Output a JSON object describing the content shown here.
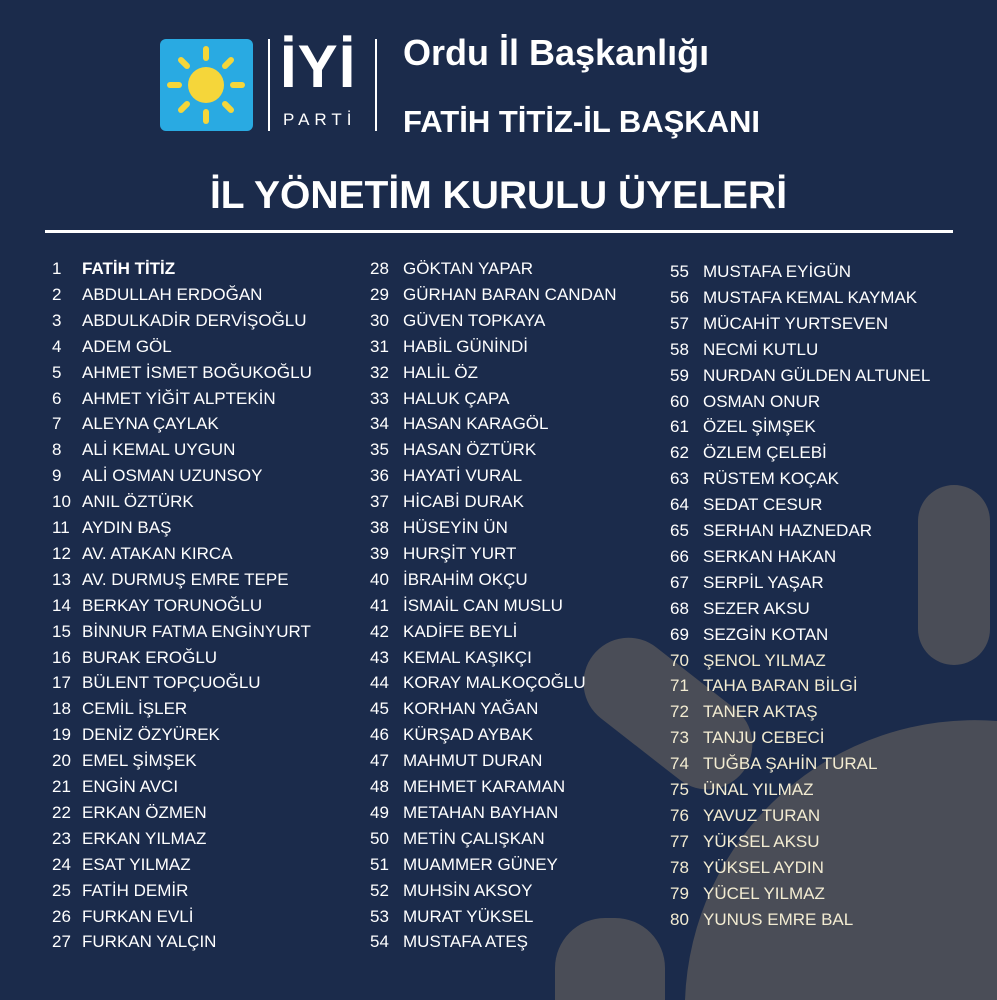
{
  "logo": {
    "wordmark": "İYİ",
    "subtext": "PARTİ",
    "sun_color": "#f5d63a",
    "box_color": "#29aae2"
  },
  "header": {
    "title": "Ordu İl Başkanlığı",
    "subtitle": "FATİH TİTİZ-İL BAŞKANI"
  },
  "section_title": "İL YÖNETİM KURULU ÜYELERİ",
  "members": [
    [
      "1",
      "FATİH TİTİZ"
    ],
    [
      "2",
      "ABDULLAH ERDOĞAN"
    ],
    [
      "3",
      "ABDULKADİR DERVİŞOĞLU"
    ],
    [
      "4",
      "ADEM GÖL"
    ],
    [
      "5",
      "AHMET İSMET BOĞUKOĞLU"
    ],
    [
      "6",
      "AHMET YİĞİT ALPTEKİN"
    ],
    [
      "7",
      "ALEYNA ÇAYLAK"
    ],
    [
      "8",
      "ALİ KEMAL UYGUN"
    ],
    [
      "9",
      "ALİ OSMAN UZUNSOY"
    ],
    [
      "10",
      "ANIL ÖZTÜRK"
    ],
    [
      "11",
      "AYDIN BAŞ"
    ],
    [
      "12",
      "AV. ATAKAN KIRCA"
    ],
    [
      "13",
      "AV. DURMUŞ EMRE TEPE"
    ],
    [
      "14",
      "BERKAY TORUNOĞLU"
    ],
    [
      "15",
      "BİNNUR FATMA ENGİNYURT"
    ],
    [
      "16",
      "BURAK EROĞLU"
    ],
    [
      "17",
      "BÜLENT TOPÇUOĞLU"
    ],
    [
      "18",
      "CEMİL İŞLER"
    ],
    [
      "19",
      "DENİZ ÖZYÜREK"
    ],
    [
      "20",
      "EMEL ŞİMŞEK"
    ],
    [
      "21",
      "ENGİN AVCI"
    ],
    [
      "22",
      "ERKAN ÖZMEN"
    ],
    [
      "23",
      "ERKAN YILMAZ"
    ],
    [
      "24",
      "ESAT YILMAZ"
    ],
    [
      "25",
      "FATİH DEMİR"
    ],
    [
      "26",
      "FURKAN EVLİ"
    ],
    [
      "27",
      "FURKAN YALÇIN"
    ],
    [
      "28",
      "GÖKTAN YAPAR"
    ],
    [
      "29",
      "GÜRHAN BARAN CANDAN"
    ],
    [
      "30",
      "GÜVEN TOPKAYA"
    ],
    [
      "31",
      "HABİL GÜNİNDİ"
    ],
    [
      "32",
      "HALİL ÖZ"
    ],
    [
      "33",
      "HALUK ÇAPA"
    ],
    [
      "34",
      "HASAN KARAGÖL"
    ],
    [
      "35",
      "HASAN ÖZTÜRK"
    ],
    [
      "36",
      "HAYATİ VURAL"
    ],
    [
      "37",
      "HİCABİ DURAK"
    ],
    [
      "38",
      "HÜSEYİN ÜN"
    ],
    [
      "39",
      "HURŞİT YURT"
    ],
    [
      "40",
      "İBRAHİM OKÇU"
    ],
    [
      "41",
      "İSMAİL CAN MUSLU"
    ],
    [
      "42",
      "KADİFE BEYLİ"
    ],
    [
      "43",
      "KEMAL KAŞIKÇI"
    ],
    [
      "44",
      "KORAY MALKOÇOĞLU"
    ],
    [
      "45",
      "KORHAN YAĞAN"
    ],
    [
      "46",
      "KÜRŞAD AYBAK"
    ],
    [
      "47",
      "MAHMUT DURAN"
    ],
    [
      "48",
      "MEHMET KARAMAN"
    ],
    [
      "49",
      "METAHAN BAYHAN"
    ],
    [
      "50",
      "METİN ÇALIŞKAN"
    ],
    [
      "51",
      "MUAMMER GÜNEY"
    ],
    [
      "52",
      "MUHSİN AKSOY"
    ],
    [
      "53",
      "MURAT YÜKSEL"
    ],
    [
      "54",
      "MUSTAFA ATEŞ"
    ],
    [
      "55",
      "MUSTAFA EYİGÜN"
    ],
    [
      "56",
      "MUSTAFA KEMAL KAYMAK"
    ],
    [
      "57",
      "MÜCAHİT YURTSEVEN"
    ],
    [
      "58",
      "NECMİ KUTLU"
    ],
    [
      "59",
      "NURDAN GÜLDEN ALTUNEL"
    ],
    [
      "60",
      "OSMAN ONUR"
    ],
    [
      "61",
      "ÖZEL ŞİMŞEK"
    ],
    [
      "62",
      "ÖZLEM ÇELEBİ"
    ],
    [
      "63",
      "RÜSTEM KOÇAK"
    ],
    [
      "64",
      "SEDAT CESUR"
    ],
    [
      "65",
      "SERHAN HAZNEDAR"
    ],
    [
      "66",
      "SERKAN HAKAN"
    ],
    [
      "67",
      "SERPİL YAŞAR"
    ],
    [
      "68",
      "SEZER AKSU"
    ],
    [
      "69",
      "SEZGİN KOTAN"
    ],
    [
      "70",
      "ŞENOL YILMAZ"
    ],
    [
      "71",
      "TAHA BARAN BİLGİ"
    ],
    [
      "72",
      "TANER AKTAŞ"
    ],
    [
      "73",
      "TANJU CEBECİ"
    ],
    [
      "74",
      "TUĞBA ŞAHİN TURAL"
    ],
    [
      "75",
      "ÜNAL YILMAZ"
    ],
    [
      "76",
      "YAVUZ TURAN"
    ],
    [
      "77",
      "YÜKSEL AKSU"
    ],
    [
      "78",
      "YÜKSEL AYDIN"
    ],
    [
      "79",
      "YÜCEL YILMAZ"
    ],
    [
      "80",
      "YUNUS EMRE BAL"
    ]
  ],
  "colors": {
    "background": "#1b2b4b",
    "shape": "#4a4d57",
    "text": "#ffffff"
  }
}
